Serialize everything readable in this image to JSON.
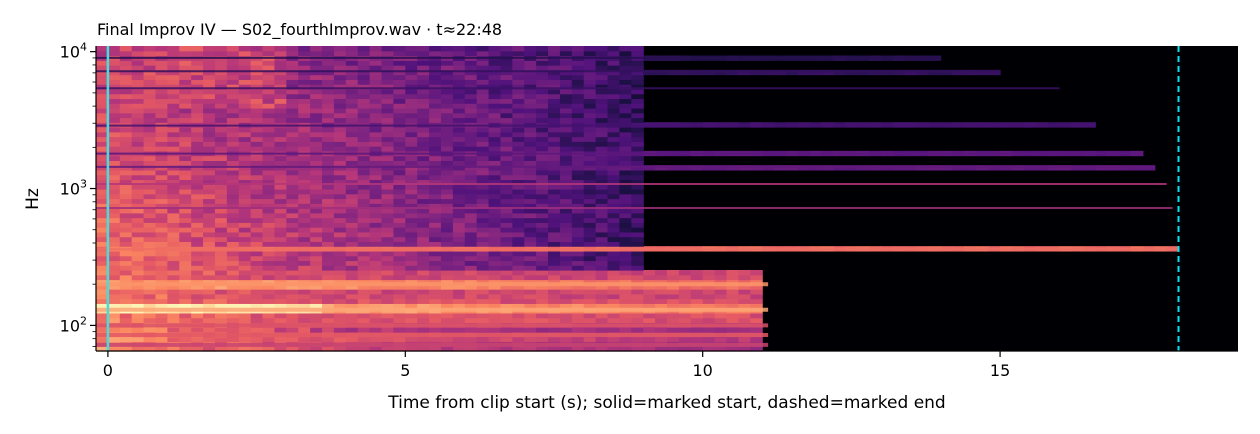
{
  "chart_data": {
    "type": "heatmap",
    "title": "Final Improv IV  —  S02_fourthImprov.wav · t≈22:48",
    "xlabel": "Time from clip start (s); solid=marked start, dashed=marked end",
    "ylabel": "Hz",
    "xlim": [
      -0.2,
      19.0
    ],
    "ylim": [
      65,
      11000
    ],
    "y_scale": "log",
    "x_ticks": [
      0,
      5,
      10,
      15
    ],
    "y_ticks": [
      {
        "base": "10",
        "exp": "2",
        "value": 100
      },
      {
        "base": "10",
        "exp": "3",
        "value": 1000
      },
      {
        "base": "10",
        "exp": "4",
        "value": 10000
      }
    ],
    "colormap": "magma",
    "colormap_stops": [
      "#000004",
      "#1c1044",
      "#4f127b",
      "#812581",
      "#b5367a",
      "#e55964",
      "#fb8761",
      "#fec287",
      "#fcfdbf"
    ],
    "harmonic_lines_hz": [
      {
        "hz": 360,
        "end_s": 18.0,
        "level": 0.68
      },
      {
        "hz": 720,
        "end_s": 17.9,
        "level": 0.45
      },
      {
        "hz": 1080,
        "end_s": 17.8,
        "level": 0.5
      },
      {
        "hz": 1440,
        "end_s": 17.6,
        "level": 0.3
      },
      {
        "hz": 1800,
        "end_s": 17.4,
        "level": 0.28
      },
      {
        "hz": 2880,
        "end_s": 16.5,
        "level": 0.22
      },
      {
        "hz": 5400,
        "end_s": 16.0,
        "level": 0.2
      },
      {
        "hz": 7200,
        "end_s": 15.0,
        "level": 0.18
      },
      {
        "hz": 9000,
        "end_s": 14.0,
        "level": 0.15
      }
    ],
    "low_bands_hz": [
      {
        "hz": 200,
        "end_s": 11.1,
        "level": 0.78
      },
      {
        "hz": 130,
        "end_s": 11.1,
        "level": 0.82
      },
      {
        "hz": 100,
        "end_s": 11.1,
        "level": 0.6
      },
      {
        "hz": 85,
        "end_s": 11.1,
        "level": 0.62
      },
      {
        "hz": 72,
        "end_s": 11.1,
        "level": 0.55
      }
    ],
    "noise_decay_s": 9.1,
    "markers": [
      {
        "name": "marked start",
        "x": 0.0,
        "style": "solid",
        "color": "#40e0e0"
      },
      {
        "name": "marked end",
        "x": 18.0,
        "style": "dashed",
        "color": "#00e5ee"
      }
    ]
  }
}
